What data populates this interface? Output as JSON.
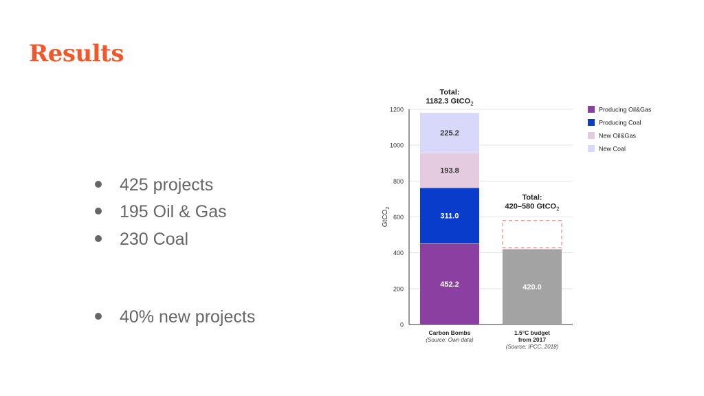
{
  "slide": {
    "title": "Results",
    "bullets": [
      "425 projects",
      "195 Oil & Gas",
      "230 Coal",
      "40% new projects"
    ]
  },
  "chart_data": {
    "type": "bar",
    "stacked": true,
    "ylabel": "GtCO2",
    "ylim": [
      0,
      1200
    ],
    "yticks": [
      0,
      200,
      400,
      600,
      800,
      1000,
      1200
    ],
    "grid": true,
    "legend_position": "right",
    "categories": [
      {
        "label": "Carbon Bombs",
        "source": "(Source: Own data)"
      },
      {
        "label": "1.5°C budget\nfrom 2017",
        "source": "(Source: IPCC, 2018)"
      }
    ],
    "series": [
      {
        "name": "Producing Oil&Gas",
        "color": "#8b3fa0",
        "values": [
          452.2,
          null
        ]
      },
      {
        "name": "Producing Coal",
        "color": "#0a3ccc",
        "values": [
          311.0,
          null
        ]
      },
      {
        "name": "New Oil&Gas",
        "color": "#e4cbe0",
        "values": [
          193.8,
          null
        ]
      },
      {
        "name": "New Coal",
        "color": "#d8d8fa",
        "values": [
          225.2,
          null
        ]
      }
    ],
    "budget_bar": {
      "category_index": 1,
      "value": 420.0,
      "label": "420.0",
      "color": "#a3a3a3",
      "range_upper": 580
    },
    "totals": [
      {
        "label": "Total:",
        "value_text": "1182.3 GtCO",
        "subscript": "2"
      },
      {
        "label": "Total:",
        "value_text": "420–580 GtCO",
        "subscript": "2"
      }
    ],
    "data_labels": [
      "452.2",
      "311.0",
      "193.8",
      "225.2"
    ]
  }
}
